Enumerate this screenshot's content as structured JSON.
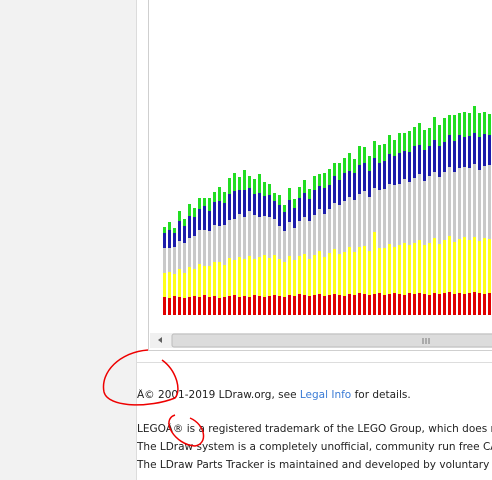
{
  "chart_data": {
    "type": "bar",
    "stacked": true,
    "series": [
      {
        "name": "red",
        "color": "#e00000",
        "values": [
          18,
          17,
          19,
          18,
          17,
          18,
          19,
          18,
          20,
          18,
          19,
          17,
          18,
          19,
          20,
          18,
          19,
          18,
          20,
          19,
          18,
          19,
          20,
          19,
          18,
          20,
          19,
          21,
          20,
          19,
          20,
          21,
          19,
          20,
          21,
          20,
          19,
          21,
          20,
          22,
          21,
          20,
          21,
          22,
          20,
          21,
          22,
          21,
          20,
          22,
          21,
          22,
          21,
          20,
          22,
          21,
          22,
          23,
          21,
          22,
          21,
          22,
          23,
          22,
          21,
          22
        ]
      },
      {
        "name": "yellow",
        "color": "#ffff1a",
        "values": [
          24,
          26,
          22,
          28,
          25,
          30,
          27,
          33,
          29,
          31,
          34,
          36,
          32,
          38,
          35,
          40,
          37,
          41,
          36,
          39,
          42,
          38,
          40,
          37,
          35,
          39,
          36,
          38,
          41,
          37,
          40,
          43,
          39,
          42,
          45,
          41,
          44,
          47,
          43,
          46,
          48,
          44,
          62,
          45,
          47,
          50,
          46,
          49,
          52,
          48,
          51,
          53,
          49,
          52,
          55,
          50,
          53,
          56,
          52,
          54,
          57,
          53,
          55,
          52,
          56,
          54
        ]
      },
      {
        "name": "gray",
        "color": "#c9c9c9",
        "values": [
          25,
          24,
          27,
          28,
          30,
          29,
          33,
          34,
          36,
          35,
          37,
          36,
          40,
          38,
          41,
          43,
          42,
          45,
          44,
          40,
          39,
          41,
          36,
          33,
          31,
          34,
          32,
          35,
          37,
          38,
          40,
          42,
          43,
          44,
          46,
          49,
          51,
          50,
          52,
          53,
          55,
          54,
          44,
          58,
          59,
          60,
          62,
          61,
          64,
          63,
          65,
          66,
          64,
          67,
          66,
          67,
          68,
          69,
          70,
          71,
          70,
          72,
          73,
          71,
          72,
          74
        ]
      },
      {
        "name": "blue",
        "color": "#1c1caa",
        "values": [
          15,
          18,
          14,
          20,
          17,
          22,
          19,
          21,
          24,
          20,
          23,
          25,
          22,
          26,
          28,
          24,
          27,
          23,
          21,
          24,
          20,
          22,
          18,
          21,
          19,
          22,
          20,
          23,
          24,
          22,
          25,
          23,
          26,
          24,
          27,
          25,
          28,
          26,
          27,
          29,
          28,
          26,
          30,
          27,
          28,
          30,
          29,
          31,
          28,
          30,
          32,
          29,
          31,
          30,
          32,
          31,
          30,
          32,
          31,
          33,
          30,
          32,
          31,
          33,
          32,
          30
        ]
      },
      {
        "name": "green",
        "color": "#22dd22",
        "values": [
          6,
          8,
          5,
          10,
          7,
          12,
          9,
          11,
          8,
          13,
          10,
          14,
          11,
          16,
          18,
          13,
          20,
          12,
          15,
          19,
          14,
          11,
          8,
          10,
          7,
          12,
          9,
          11,
          13,
          10,
          14,
          12,
          15,
          16,
          13,
          17,
          15,
          18,
          14,
          19,
          16,
          15,
          17,
          18,
          17,
          19,
          16,
          20,
          18,
          21,
          19,
          22,
          20,
          18,
          23,
          21,
          24,
          20,
          26,
          22,
          25,
          23,
          27,
          24,
          22,
          21
        ]
      }
    ]
  },
  "footer": {
    "copyright": [
      "Â© 2001-2019 LDraw.org, see ",
      "Legal Info",
      " for details."
    ],
    "lines": [
      "LEGOÂ® is a registered trademark of the LEGO Group, which does not",
      "The LDraw system is a completely unofficial, community run free CAD system",
      "The LDraw Parts Tracker is maintained and developed by voluntary members"
    ]
  }
}
